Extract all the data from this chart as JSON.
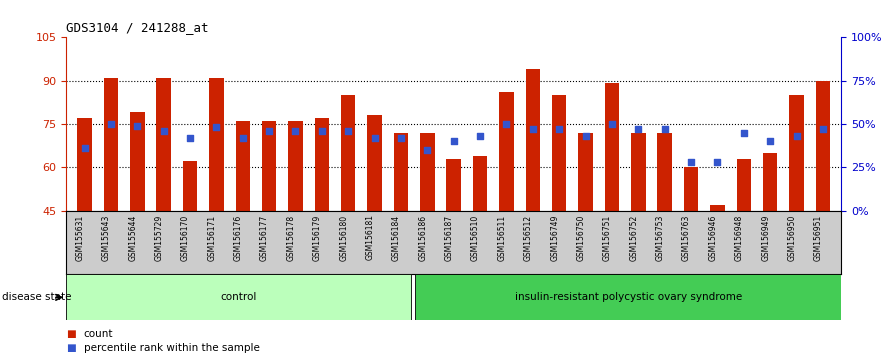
{
  "title": "GDS3104 / 241288_at",
  "samples": [
    "GSM155631",
    "GSM155643",
    "GSM155644",
    "GSM155729",
    "GSM156170",
    "GSM156171",
    "GSM156176",
    "GSM156177",
    "GSM156178",
    "GSM156179",
    "GSM156180",
    "GSM156181",
    "GSM156184",
    "GSM156186",
    "GSM156187",
    "GSM156510",
    "GSM156511",
    "GSM156512",
    "GSM156749",
    "GSM156750",
    "GSM156751",
    "GSM156752",
    "GSM156753",
    "GSM156763",
    "GSM156946",
    "GSM156948",
    "GSM156949",
    "GSM156950",
    "GSM156951"
  ],
  "count_values": [
    77,
    91,
    79,
    91,
    62,
    91,
    76,
    76,
    76,
    77,
    85,
    78,
    72,
    72,
    63,
    64,
    86,
    94,
    85,
    72,
    89,
    72,
    72,
    60,
    47,
    63,
    65,
    85,
    90
  ],
  "percentile_values": [
    36,
    50,
    49,
    46,
    42,
    48,
    42,
    46,
    46,
    46,
    46,
    42,
    42,
    35,
    40,
    43,
    50,
    47,
    47,
    43,
    50,
    47,
    47,
    28,
    28,
    45,
    40,
    43,
    47
  ],
  "n_control": 13,
  "n_treatment": 16,
  "group_labels": [
    "control",
    "insulin-resistant polycystic ovary syndrome"
  ],
  "bar_color": "#CC2200",
  "dot_color": "#3355CC",
  "ctrl_color": "#BBFFBB",
  "treat_color": "#44CC55",
  "yticks_left": [
    45,
    60,
    75,
    90,
    105
  ],
  "ytick_labels_left": [
    "45",
    "60",
    "75",
    "90",
    "105"
  ],
  "yticks_right": [
    0,
    25,
    50,
    75,
    100
  ],
  "ytick_labels_right": [
    "0%",
    "25%",
    "50%",
    "75%",
    "100%"
  ]
}
